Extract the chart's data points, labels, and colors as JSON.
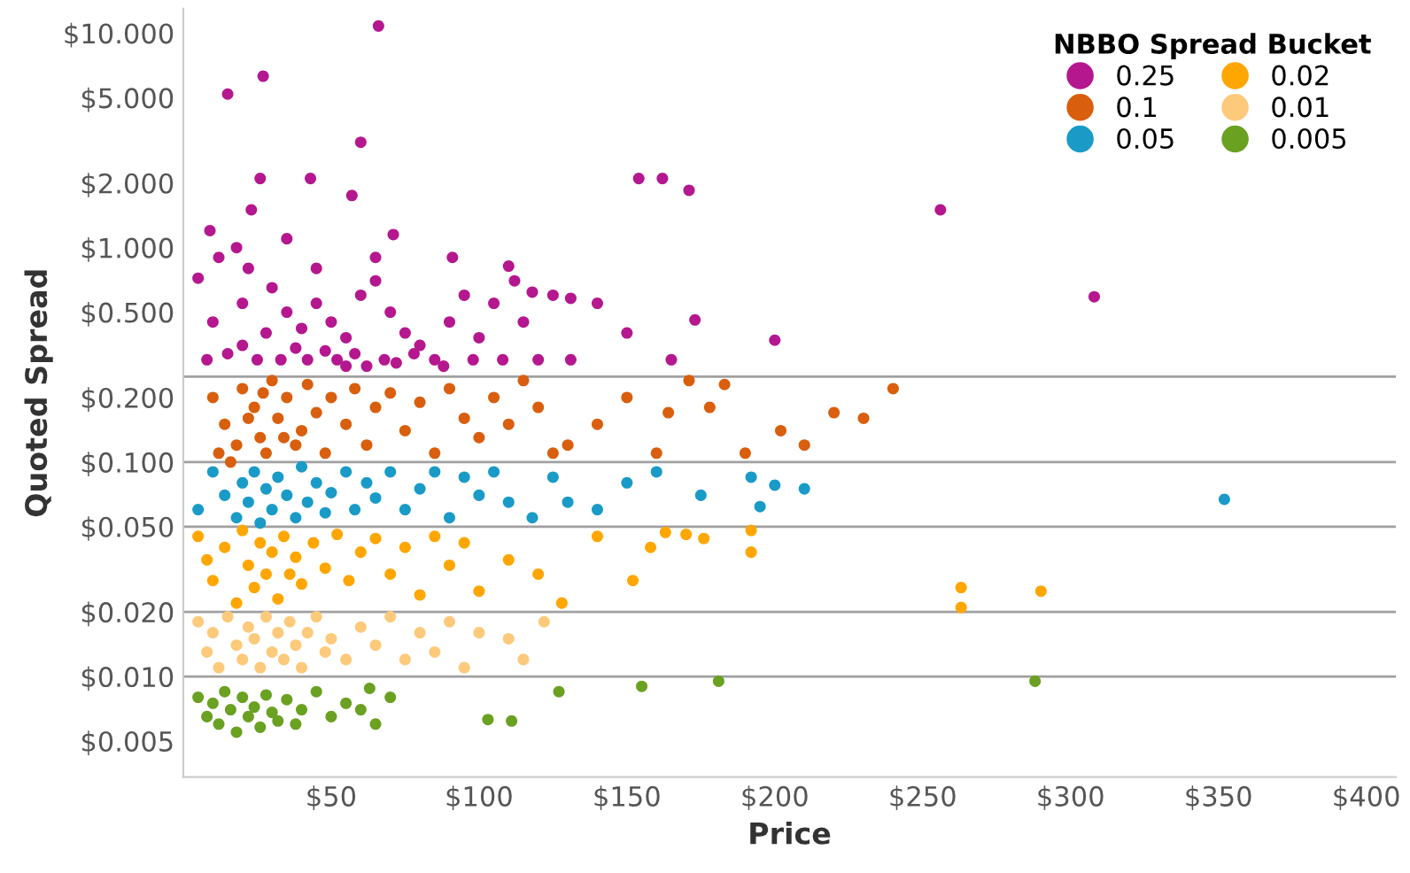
{
  "chart_data": {
    "type": "scatter",
    "xlabel": "Price",
    "ylabel": "Quoted Spread",
    "legend_title": "NBBO Spread Bucket",
    "legend": "top right",
    "marker": "circle",
    "log": "y",
    "xlim": [
      0,
      410
    ],
    "xticks": [
      {
        "value": 50,
        "label": "$50"
      },
      {
        "value": 100,
        "label": "$100"
      },
      {
        "value": 150,
        "label": "$150"
      },
      {
        "value": 200,
        "label": "$200"
      },
      {
        "value": 250,
        "label": "$250"
      },
      {
        "value": 300,
        "label": "$300"
      },
      {
        "value": 350,
        "label": "$350"
      },
      {
        "value": 400,
        "label": "$400"
      }
    ],
    "ylim": [
      0.0034,
      13
    ],
    "yticks": [
      {
        "value": 0.005,
        "label": "$0.005"
      },
      {
        "value": 0.01,
        "label": "$0.010"
      },
      {
        "value": 0.02,
        "label": "$0.020"
      },
      {
        "value": 0.05,
        "label": "$0.050"
      },
      {
        "value": 0.1,
        "label": "$0.100"
      },
      {
        "value": 0.2,
        "label": "$0.200"
      },
      {
        "value": 0.5,
        "label": "$0.500"
      },
      {
        "value": 1,
        "label": "$1.000"
      },
      {
        "value": 2,
        "label": "$2.000"
      },
      {
        "value": 5,
        "label": "$5.000"
      },
      {
        "value": 10,
        "label": "$10.000"
      }
    ],
    "ref_lines": [
      {
        "axis": "y",
        "value": 0.25,
        "color": "#a0a0a0"
      },
      {
        "axis": "y",
        "value": 0.1,
        "color": "#a0a0a0"
      },
      {
        "axis": "y",
        "value": 0.05,
        "color": "#a0a0a0"
      },
      {
        "axis": "y",
        "value": 0.02,
        "color": "#a0a0a0"
      },
      {
        "axis": "y",
        "value": 0.01,
        "color": "#a0a0a0"
      }
    ],
    "series": [
      {
        "name": "0.25",
        "color": "#b5178f",
        "x": [
          66,
          15,
          27,
          60,
          26,
          43,
          23,
          57,
          71,
          9,
          5,
          91,
          110,
          154,
          162,
          171,
          131,
          256,
          308,
          173,
          200,
          131,
          12,
          18,
          22,
          30,
          35,
          40,
          45,
          50,
          55,
          60,
          65,
          70,
          75,
          80,
          85,
          90,
          95,
          100,
          105,
          115,
          120,
          125,
          140,
          150,
          165,
          8,
          15,
          20,
          25,
          28,
          33,
          38,
          42,
          48,
          52,
          58,
          62,
          68,
          72,
          78,
          88,
          98,
          108,
          112,
          118,
          65,
          45,
          35,
          20,
          10,
          55
        ],
        "values": [
          10.8,
          5.2,
          6.3,
          3.1,
          2.1,
          2.1,
          1.5,
          1.75,
          1.15,
          1.2,
          0.72,
          0.9,
          0.82,
          2.1,
          2.1,
          1.85,
          0.58,
          1.5,
          0.59,
          0.46,
          0.37,
          0.3,
          0.9,
          1.0,
          0.8,
          0.65,
          0.5,
          0.42,
          0.55,
          0.45,
          0.38,
          0.6,
          0.7,
          0.5,
          0.4,
          0.35,
          0.3,
          0.45,
          0.6,
          0.38,
          0.55,
          0.45,
          0.3,
          0.6,
          0.55,
          0.4,
          0.3,
          0.3,
          0.32,
          0.35,
          0.3,
          0.4,
          0.3,
          0.34,
          0.3,
          0.33,
          0.3,
          0.32,
          0.28,
          0.3,
          0.29,
          0.32,
          0.28,
          0.3,
          0.3,
          0.7,
          0.62,
          0.9,
          0.8,
          1.1,
          0.55,
          0.45,
          0.28
        ]
      },
      {
        "name": "0.1",
        "color": "#d95f0e",
        "x": [
          171,
          183,
          178,
          202,
          240,
          230,
          164,
          210,
          150,
          140,
          130,
          120,
          160,
          190,
          220,
          10,
          14,
          18,
          20,
          24,
          26,
          28,
          30,
          32,
          35,
          38,
          40,
          42,
          45,
          48,
          50,
          55,
          58,
          62,
          65,
          70,
          75,
          80,
          85,
          90,
          95,
          100,
          105,
          110,
          115,
          22,
          16,
          12,
          34,
          27,
          125
        ],
        "values": [
          0.24,
          0.23,
          0.18,
          0.14,
          0.22,
          0.16,
          0.17,
          0.12,
          0.2,
          0.15,
          0.12,
          0.18,
          0.11,
          0.11,
          0.17,
          0.2,
          0.15,
          0.12,
          0.22,
          0.18,
          0.13,
          0.11,
          0.24,
          0.16,
          0.2,
          0.12,
          0.14,
          0.23,
          0.17,
          0.11,
          0.2,
          0.15,
          0.22,
          0.12,
          0.18,
          0.21,
          0.14,
          0.19,
          0.11,
          0.22,
          0.16,
          0.13,
          0.2,
          0.15,
          0.24,
          0.16,
          0.1,
          0.11,
          0.13,
          0.21,
          0.11
        ]
      },
      {
        "name": "0.05",
        "color": "#1a9bc7",
        "x": [
          352,
          195,
          192,
          160,
          175,
          150,
          140,
          130,
          125,
          118,
          5,
          10,
          14,
          18,
          20,
          22,
          24,
          26,
          28,
          30,
          32,
          35,
          38,
          40,
          42,
          45,
          48,
          50,
          55,
          58,
          62,
          65,
          70,
          75,
          80,
          85,
          90,
          95,
          100,
          105,
          110,
          200,
          210
        ],
        "values": [
          0.067,
          0.062,
          0.085,
          0.09,
          0.07,
          0.08,
          0.06,
          0.065,
          0.085,
          0.055,
          0.06,
          0.09,
          0.07,
          0.055,
          0.08,
          0.065,
          0.09,
          0.052,
          0.075,
          0.06,
          0.085,
          0.07,
          0.055,
          0.095,
          0.065,
          0.08,
          0.058,
          0.072,
          0.09,
          0.06,
          0.08,
          0.068,
          0.09,
          0.06,
          0.075,
          0.09,
          0.055,
          0.085,
          0.07,
          0.09,
          0.065,
          0.078,
          0.075
        ]
      },
      {
        "name": "0.02",
        "color": "#ffa600",
        "x": [
          263,
          290,
          263,
          163,
          176,
          192,
          192,
          158,
          152,
          110,
          128,
          140,
          170,
          120,
          100,
          5,
          8,
          10,
          14,
          18,
          20,
          22,
          24,
          26,
          28,
          30,
          32,
          34,
          36,
          38,
          40,
          44,
          48,
          52,
          56,
          60,
          65,
          70,
          75,
          80,
          85,
          90,
          95
        ],
        "values": [
          0.021,
          0.025,
          0.026,
          0.047,
          0.044,
          0.048,
          0.038,
          0.04,
          0.028,
          0.035,
          0.022,
          0.045,
          0.046,
          0.03,
          0.025,
          0.045,
          0.035,
          0.028,
          0.04,
          0.022,
          0.048,
          0.033,
          0.026,
          0.042,
          0.03,
          0.038,
          0.023,
          0.045,
          0.03,
          0.036,
          0.027,
          0.042,
          0.032,
          0.046,
          0.028,
          0.038,
          0.044,
          0.03,
          0.04,
          0.024,
          0.045,
          0.033,
          0.042
        ]
      },
      {
        "name": "0.01",
        "color": "#fdc97a",
        "x": [
          122,
          110,
          115,
          100,
          5,
          8,
          10,
          12,
          15,
          18,
          20,
          22,
          24,
          26,
          28,
          30,
          32,
          34,
          36,
          38,
          40,
          42,
          45,
          48,
          50,
          55,
          60,
          65,
          70,
          75,
          80,
          85,
          90,
          95
        ],
        "values": [
          0.018,
          0.015,
          0.012,
          0.016,
          0.018,
          0.013,
          0.016,
          0.011,
          0.019,
          0.014,
          0.012,
          0.017,
          0.015,
          0.011,
          0.019,
          0.013,
          0.016,
          0.012,
          0.018,
          0.014,
          0.011,
          0.016,
          0.019,
          0.013,
          0.015,
          0.012,
          0.017,
          0.014,
          0.019,
          0.012,
          0.016,
          0.013,
          0.018,
          0.011
        ]
      },
      {
        "name": "0.005",
        "color": "#6aa121",
        "x": [
          288,
          181,
          155,
          127,
          111,
          103,
          63,
          5,
          8,
          10,
          12,
          14,
          16,
          18,
          20,
          22,
          24,
          26,
          28,
          30,
          32,
          35,
          38,
          40,
          45,
          50,
          55,
          60,
          65,
          70
        ],
        "values": [
          0.0095,
          0.0095,
          0.009,
          0.0085,
          0.0062,
          0.0063,
          0.0088,
          0.008,
          0.0065,
          0.0075,
          0.006,
          0.0085,
          0.007,
          0.0055,
          0.008,
          0.0065,
          0.0072,
          0.0058,
          0.0082,
          0.0068,
          0.0062,
          0.0078,
          0.006,
          0.007,
          0.0085,
          0.0065,
          0.0075,
          0.007,
          0.006,
          0.008
        ]
      }
    ]
  }
}
